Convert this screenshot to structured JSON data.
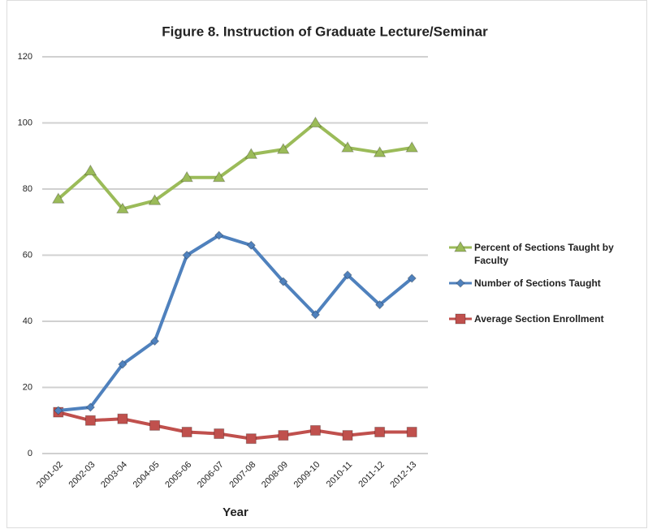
{
  "chart_data": {
    "type": "line",
    "title": "Figure 8. Instruction of Graduate Lecture/Seminar",
    "x_label": "Year",
    "categories": [
      "2001-02",
      "2002-03",
      "2003-04",
      "2004-05",
      "2005-06",
      "2006-07",
      "2007-08",
      "2008-09",
      "2009-10",
      "2010-11",
      "2011-12",
      "2012-13"
    ],
    "series": [
      {
        "name": "Percent of Sections Taught by Faculty",
        "color": "#9bbb59",
        "marker": "triangle",
        "values": [
          77,
          85.5,
          74,
          76.5,
          83.5,
          83.5,
          90.5,
          92,
          100,
          92.5,
          91,
          92.5
        ]
      },
      {
        "name": "Number of Sections Taught",
        "color": "#4f81bd",
        "marker": "diamond",
        "values": [
          13,
          14,
          27,
          34,
          60,
          66,
          63,
          52,
          42,
          54,
          45,
          53
        ]
      },
      {
        "name": "Average Section Enrollment",
        "color": "#c0504d",
        "marker": "square",
        "values": [
          12.5,
          10,
          10.5,
          8.5,
          6.5,
          6,
          4.5,
          5.5,
          7,
          5.5,
          6.5,
          6.5
        ]
      }
    ],
    "ylim": [
      0,
      120
    ],
    "yticks": [
      0,
      20,
      40,
      60,
      80,
      100,
      120
    ],
    "grid": true,
    "legend": "right"
  }
}
